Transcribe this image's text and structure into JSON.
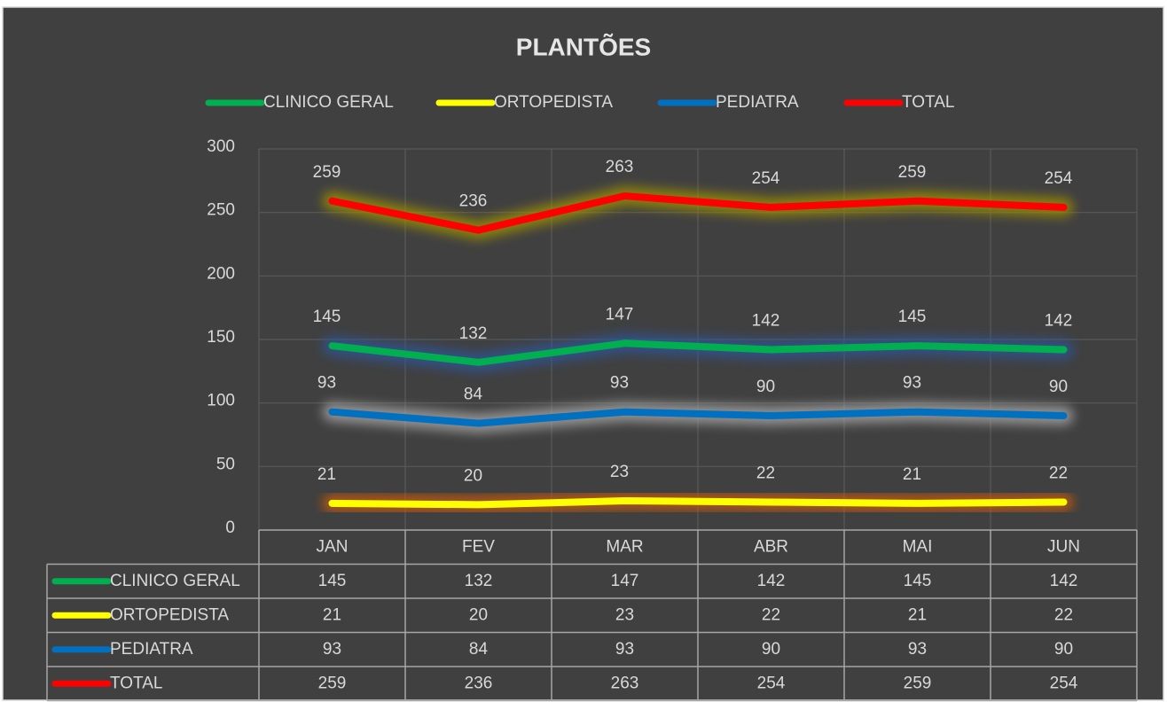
{
  "chart_data": {
    "type": "line",
    "title": "PLANTÕES",
    "categories": [
      "JAN",
      "FEV",
      "MAR",
      "ABR",
      "MAI",
      "JUN"
    ],
    "series": [
      {
        "name": "CLINICO GERAL",
        "color": "#00b050",
        "glow": "#2f5597",
        "values": [
          145,
          132,
          147,
          142,
          145,
          142
        ]
      },
      {
        "name": "ORTOPEDISTA",
        "color": "#ffff00",
        "glow": "#c55a11",
        "values": [
          21,
          20,
          23,
          22,
          21,
          22
        ]
      },
      {
        "name": "PEDIATRA",
        "color": "#0070c0",
        "glow": "#a6a6a6",
        "values": [
          93,
          84,
          93,
          90,
          93,
          90
        ]
      },
      {
        "name": "TOTAL",
        "color": "#ff0000",
        "glow": "#9c8f00",
        "values": [
          259,
          236,
          263,
          254,
          259,
          254
        ]
      }
    ],
    "ylim": [
      0,
      300
    ],
    "yticks": [
      0,
      50,
      100,
      150,
      200,
      250,
      300
    ],
    "grid": true,
    "legend": "top",
    "data_table": true
  }
}
